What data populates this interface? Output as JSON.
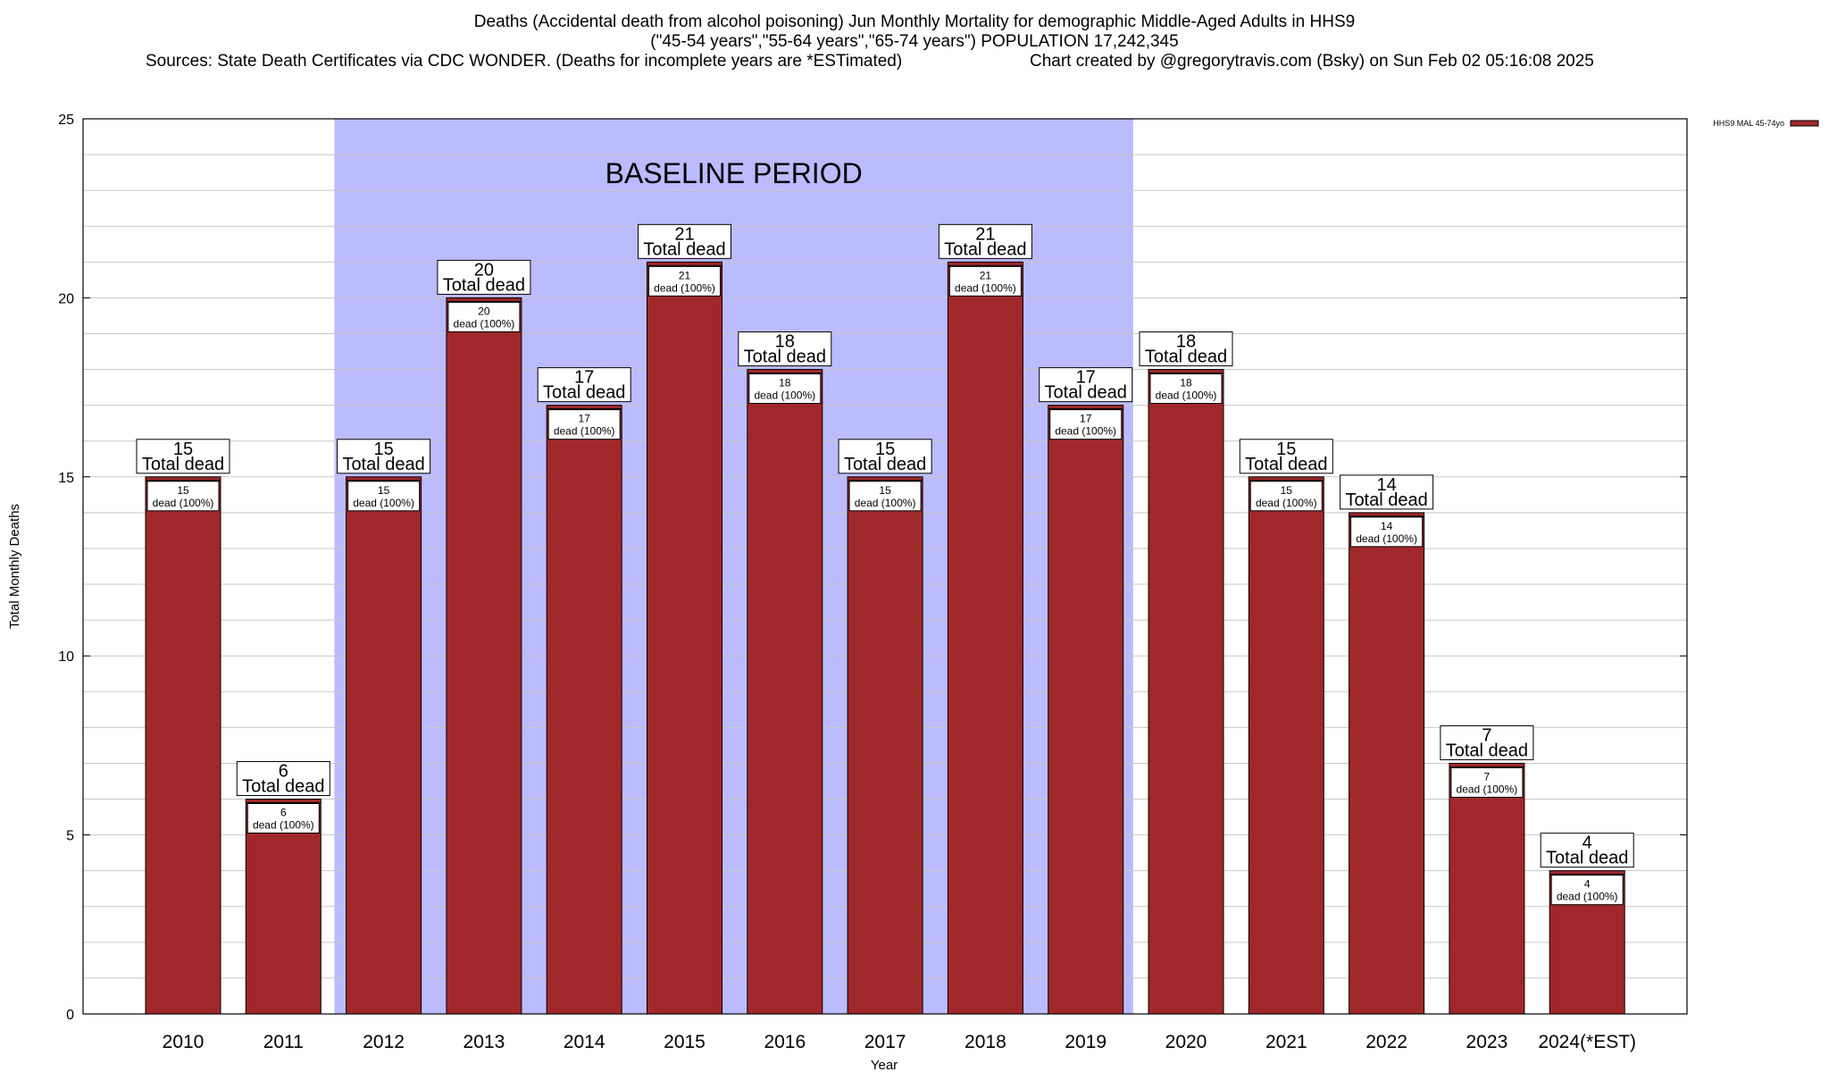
{
  "titles": {
    "line1": "Deaths (Accidental death from alcohol poisoning) Jun Monthly Mortality for demographic Middle-Aged Adults in HHS9",
    "line2": "(\"45-54 years\",\"55-64 years\",\"65-74 years\") POPULATION 17,242,345",
    "sources": "Sources: State Death Certificates via CDC WONDER. (Deaths for incomplete years are *ESTimated)",
    "credit": "Chart created by @gregorytravis.com (Bsky) on Sun Feb 02 05:16:08 2025"
  },
  "chart_data": {
    "type": "bar",
    "xlabel": "Year",
    "ylabel": "Total Monthly Deaths",
    "ylim": [
      0,
      25
    ],
    "yticks": [
      0,
      5,
      10,
      15,
      20,
      25
    ],
    "grid": true,
    "legend_position": "top-right",
    "categories": [
      "2010",
      "2011",
      "2012",
      "2013",
      "2014",
      "2015",
      "2016",
      "2017",
      "2018",
      "2019",
      "2020",
      "2021",
      "2022",
      "2023",
      "2024(*EST)"
    ],
    "series": [
      {
        "name": "HHS9 MAL 45-74yo",
        "color": "#a0282a",
        "values": [
          15,
          6,
          15,
          20,
          17,
          21,
          18,
          15,
          21,
          17,
          18,
          15,
          14,
          7,
          4
        ]
      }
    ],
    "total_label_suffix": "Total dead",
    "segment_labels": [
      "15\ndead (100%)",
      "6\ndead (100%)",
      "15\ndead (100%)",
      "20\ndead (100%)",
      "17\ndead (100%)",
      "21\ndead (100%)",
      "18\ndead (100%)",
      "15\ndead (100%)",
      "21\ndead (100%)",
      "17\ndead (100%)",
      "18\ndead (100%)",
      "15\ndead (100%)",
      "14\ndead (100%)",
      "7\ndead (100%)",
      "4\ndead (100%)"
    ],
    "baseline": {
      "label": "BASELINE PERIOD",
      "from": "2012",
      "to": "2019",
      "color": "#bbbbff"
    }
  }
}
